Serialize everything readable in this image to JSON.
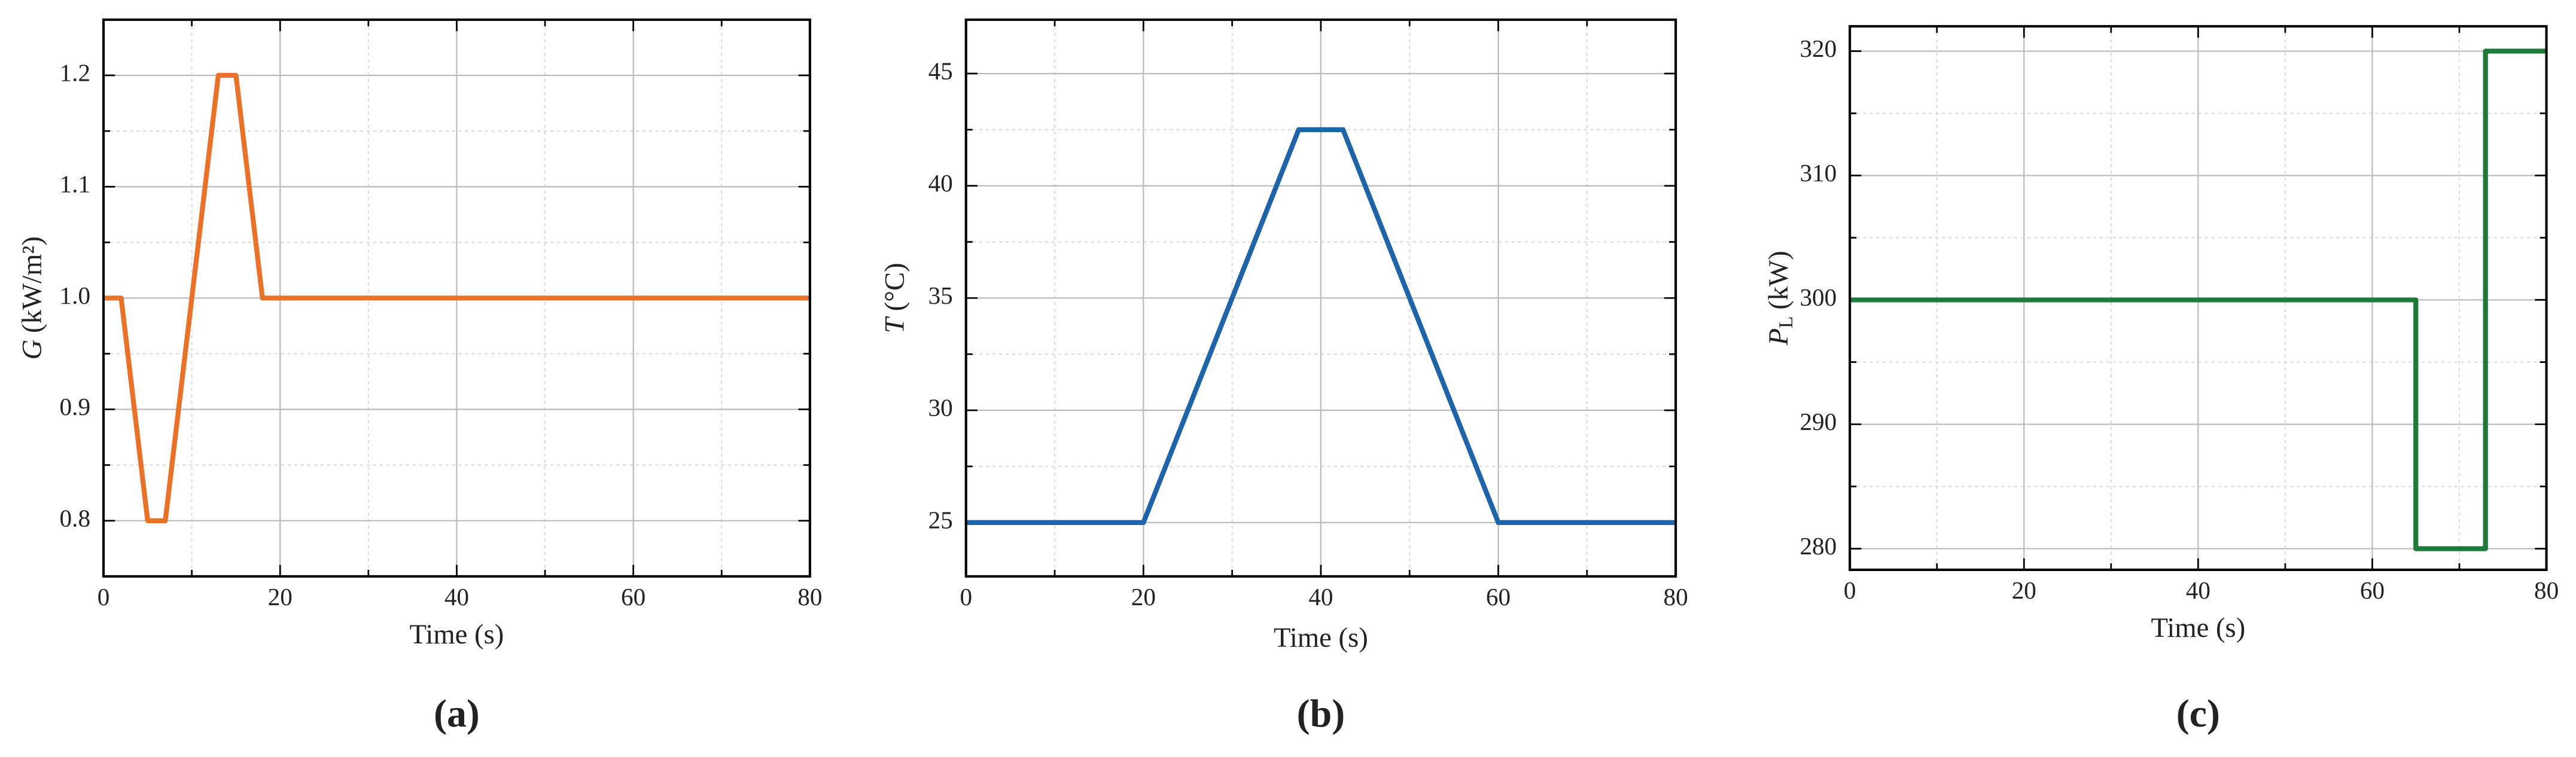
{
  "chart_data": [
    {
      "type": "line",
      "ylabel_symbol": "G",
      "ylabel_unit": "(kW/m²)",
      "xlabel": "Time (s)",
      "caption": "(a)",
      "x": [
        0,
        2,
        5,
        7,
        13,
        15,
        18,
        80
      ],
      "values": [
        1.0,
        1.0,
        0.8,
        0.8,
        1.2,
        1.2,
        1.0,
        1.0
      ],
      "color": "#e8722a",
      "xlim": [
        0,
        80
      ],
      "xticks": [
        0,
        20,
        40,
        60,
        80
      ],
      "minor_xticks": [
        10,
        30,
        50,
        70
      ],
      "ylim": [
        0.75,
        1.25
      ],
      "yticks": [
        {
          "value": 0.8,
          "label": "0.8"
        },
        {
          "value": 0.9,
          "label": "0.9"
        },
        {
          "value": 1.0,
          "label": "1.0"
        },
        {
          "value": 1.1,
          "label": "1.1"
        },
        {
          "value": 1.2,
          "label": "1.2"
        }
      ],
      "minor_yticks": [
        0.85,
        0.95,
        1.05,
        1.15
      ],
      "grid": true
    },
    {
      "type": "line",
      "ylabel_symbol": "T",
      "ylabel_unit": "(°C)",
      "xlabel": "Time (s)",
      "caption": "(b)",
      "x": [
        0,
        20,
        37.5,
        42.5,
        60,
        80
      ],
      "values": [
        25,
        25,
        42.5,
        42.5,
        25,
        25
      ],
      "color": "#1f63a8",
      "xlim": [
        0,
        80
      ],
      "xticks": [
        0,
        20,
        40,
        60,
        80
      ],
      "minor_xticks": [
        10,
        30,
        50,
        70
      ],
      "ylim": [
        22.6,
        47.4
      ],
      "yticks": [
        25,
        30,
        35,
        40,
        45
      ],
      "minor_yticks": [
        27.5,
        32.5,
        37.5,
        42.5
      ],
      "grid": true
    },
    {
      "type": "line",
      "ylabel_symbol": "P",
      "ylabel_sub": "L",
      "ylabel_unit": "(kW)",
      "xlabel": "Time (s)",
      "caption": "(c)",
      "x": [
        0,
        65,
        65,
        73,
        73,
        80
      ],
      "values": [
        300,
        300,
        280,
        280,
        320,
        320
      ],
      "color": "#1d7a3a",
      "xlim": [
        0,
        80
      ],
      "xticks": [
        0,
        20,
        40,
        60,
        80
      ],
      "minor_xticks": [
        10,
        30,
        50,
        70
      ],
      "ylim": [
        278.3,
        322
      ],
      "yticks": [
        280,
        290,
        300,
        310,
        320
      ],
      "minor_yticks": [
        285,
        295,
        305,
        315
      ],
      "grid": true
    }
  ]
}
